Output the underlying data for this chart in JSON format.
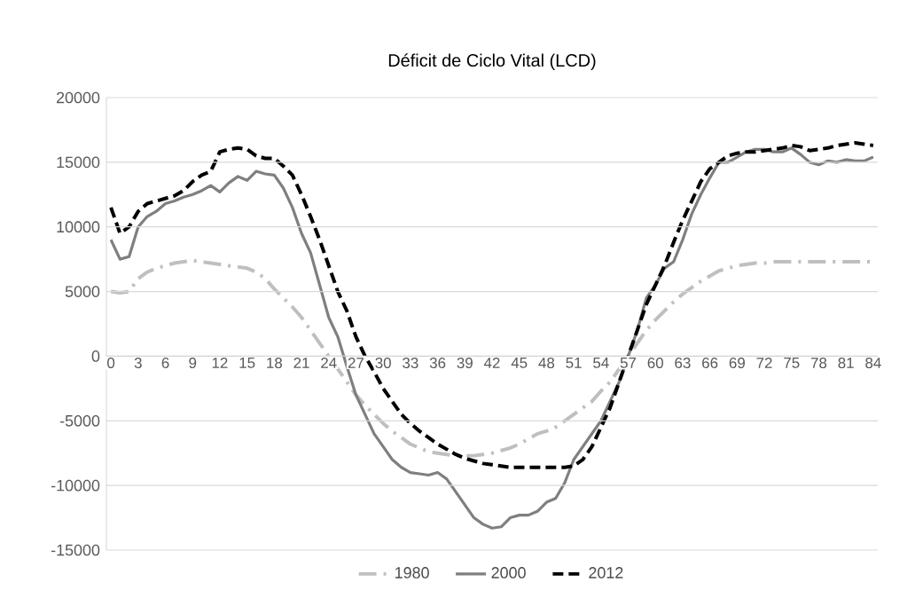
{
  "chart_data": {
    "type": "line",
    "title": "Déficit de Ciclo Vital (LCD)",
    "categories": [
      "0",
      null,
      null,
      "3",
      null,
      null,
      "6",
      null,
      null,
      "9",
      null,
      null,
      "12",
      null,
      null,
      "15",
      null,
      null,
      "18",
      null,
      null,
      "21",
      null,
      null,
      "24",
      null,
      null,
      "27",
      null,
      null,
      "30",
      null,
      null,
      "33",
      null,
      null,
      "36",
      null,
      null,
      "39",
      null,
      null,
      "42",
      null,
      null,
      "45",
      null,
      null,
      "48",
      null,
      null,
      "51",
      null,
      null,
      "54",
      null,
      null,
      "57",
      null,
      null,
      "60",
      null,
      null,
      "63",
      null,
      null,
      "66",
      null,
      null,
      "69",
      null,
      null,
      "72",
      null,
      null,
      "75",
      null,
      null,
      "78",
      null,
      null,
      "81",
      null,
      null,
      "84"
    ],
    "series": [
      {
        "name": "1980",
        "color": "#bfbfbf",
        "line_style": "dashdot",
        "values": [
          5000,
          4900,
          5000,
          6000,
          6500,
          6800,
          7000,
          7200,
          7300,
          7400,
          7300,
          7200,
          7100,
          7000,
          6900,
          6800,
          6500,
          6000,
          5200,
          4500,
          3800,
          3000,
          2000,
          1000,
          0,
          -1000,
          -2000,
          -3000,
          -3800,
          -4500,
          -5200,
          -5800,
          -6300,
          -6800,
          -7100,
          -7400,
          -7500,
          -7600,
          -7700,
          -7700,
          -7700,
          -7600,
          -7500,
          -7300,
          -7100,
          -6800,
          -6400,
          -6000,
          -5800,
          -5500,
          -5000,
          -4500,
          -4000,
          -3500,
          -2700,
          -2000,
          -1000,
          0,
          1000,
          2000,
          2800,
          3500,
          4200,
          4800,
          5300,
          5800,
          6200,
          6600,
          6800,
          7000,
          7100,
          7200,
          7200,
          7300,
          7300,
          7300,
          7300,
          7300,
          7300,
          7300,
          7300,
          7300,
          7300,
          7300,
          7300
        ]
      },
      {
        "name": "2000",
        "color": "#7f7f7f",
        "line_style": "solid",
        "values": [
          9000,
          7500,
          7700,
          10000,
          10800,
          11200,
          11800,
          12000,
          12300,
          12500,
          12800,
          13200,
          12700,
          13400,
          13900,
          13600,
          14300,
          14100,
          14000,
          13000,
          11500,
          9500,
          8000,
          5500,
          3000,
          1500,
          -800,
          -3000,
          -4500,
          -6000,
          -7000,
          -8000,
          -8600,
          -9000,
          -9100,
          -9200,
          -9000,
          -9500,
          -10500,
          -11500,
          -12500,
          -13000,
          -13300,
          -13200,
          -12500,
          -12300,
          -12300,
          -12000,
          -11300,
          -11000,
          -9800,
          -8000,
          -7000,
          -6000,
          -5000,
          -3500,
          -2000,
          0,
          2000,
          4500,
          5500,
          6800,
          7300,
          9000,
          11000,
          12500,
          13800,
          15000,
          15000,
          15400,
          15800,
          16000,
          16000,
          15800,
          15800,
          16100,
          15600,
          15000,
          14800,
          15100,
          15000,
          15200,
          15100,
          15100,
          15400
        ]
      },
      {
        "name": "2012",
        "color": "#000000",
        "line_style": "dashed",
        "values": [
          11500,
          9500,
          10000,
          11200,
          11800,
          12000,
          12200,
          12400,
          12800,
          13500,
          14000,
          14300,
          15800,
          16000,
          16100,
          16000,
          15500,
          15300,
          15300,
          14700,
          14000,
          12500,
          10800,
          9000,
          7000,
          5000,
          3500,
          1500,
          0,
          -1200,
          -2500,
          -3500,
          -4500,
          -5200,
          -5800,
          -6300,
          -6800,
          -7200,
          -7600,
          -7900,
          -8100,
          -8300,
          -8400,
          -8500,
          -8600,
          -8600,
          -8600,
          -8600,
          -8600,
          -8600,
          -8600,
          -8500,
          -8000,
          -7000,
          -5500,
          -4000,
          -2000,
          0,
          2000,
          4000,
          5500,
          7000,
          8800,
          10500,
          12000,
          13500,
          14500,
          15000,
          15500,
          15700,
          15800,
          15800,
          15900,
          16000,
          16100,
          16300,
          16200,
          15900,
          16000,
          16100,
          16300,
          16400,
          16500,
          16400,
          16300
        ]
      }
    ],
    "ylim": [
      -15000,
      20000
    ],
    "yticks": [
      -15000,
      -10000,
      -5000,
      0,
      5000,
      10000,
      15000,
      20000
    ],
    "grid": "y",
    "legend": "bottom"
  }
}
